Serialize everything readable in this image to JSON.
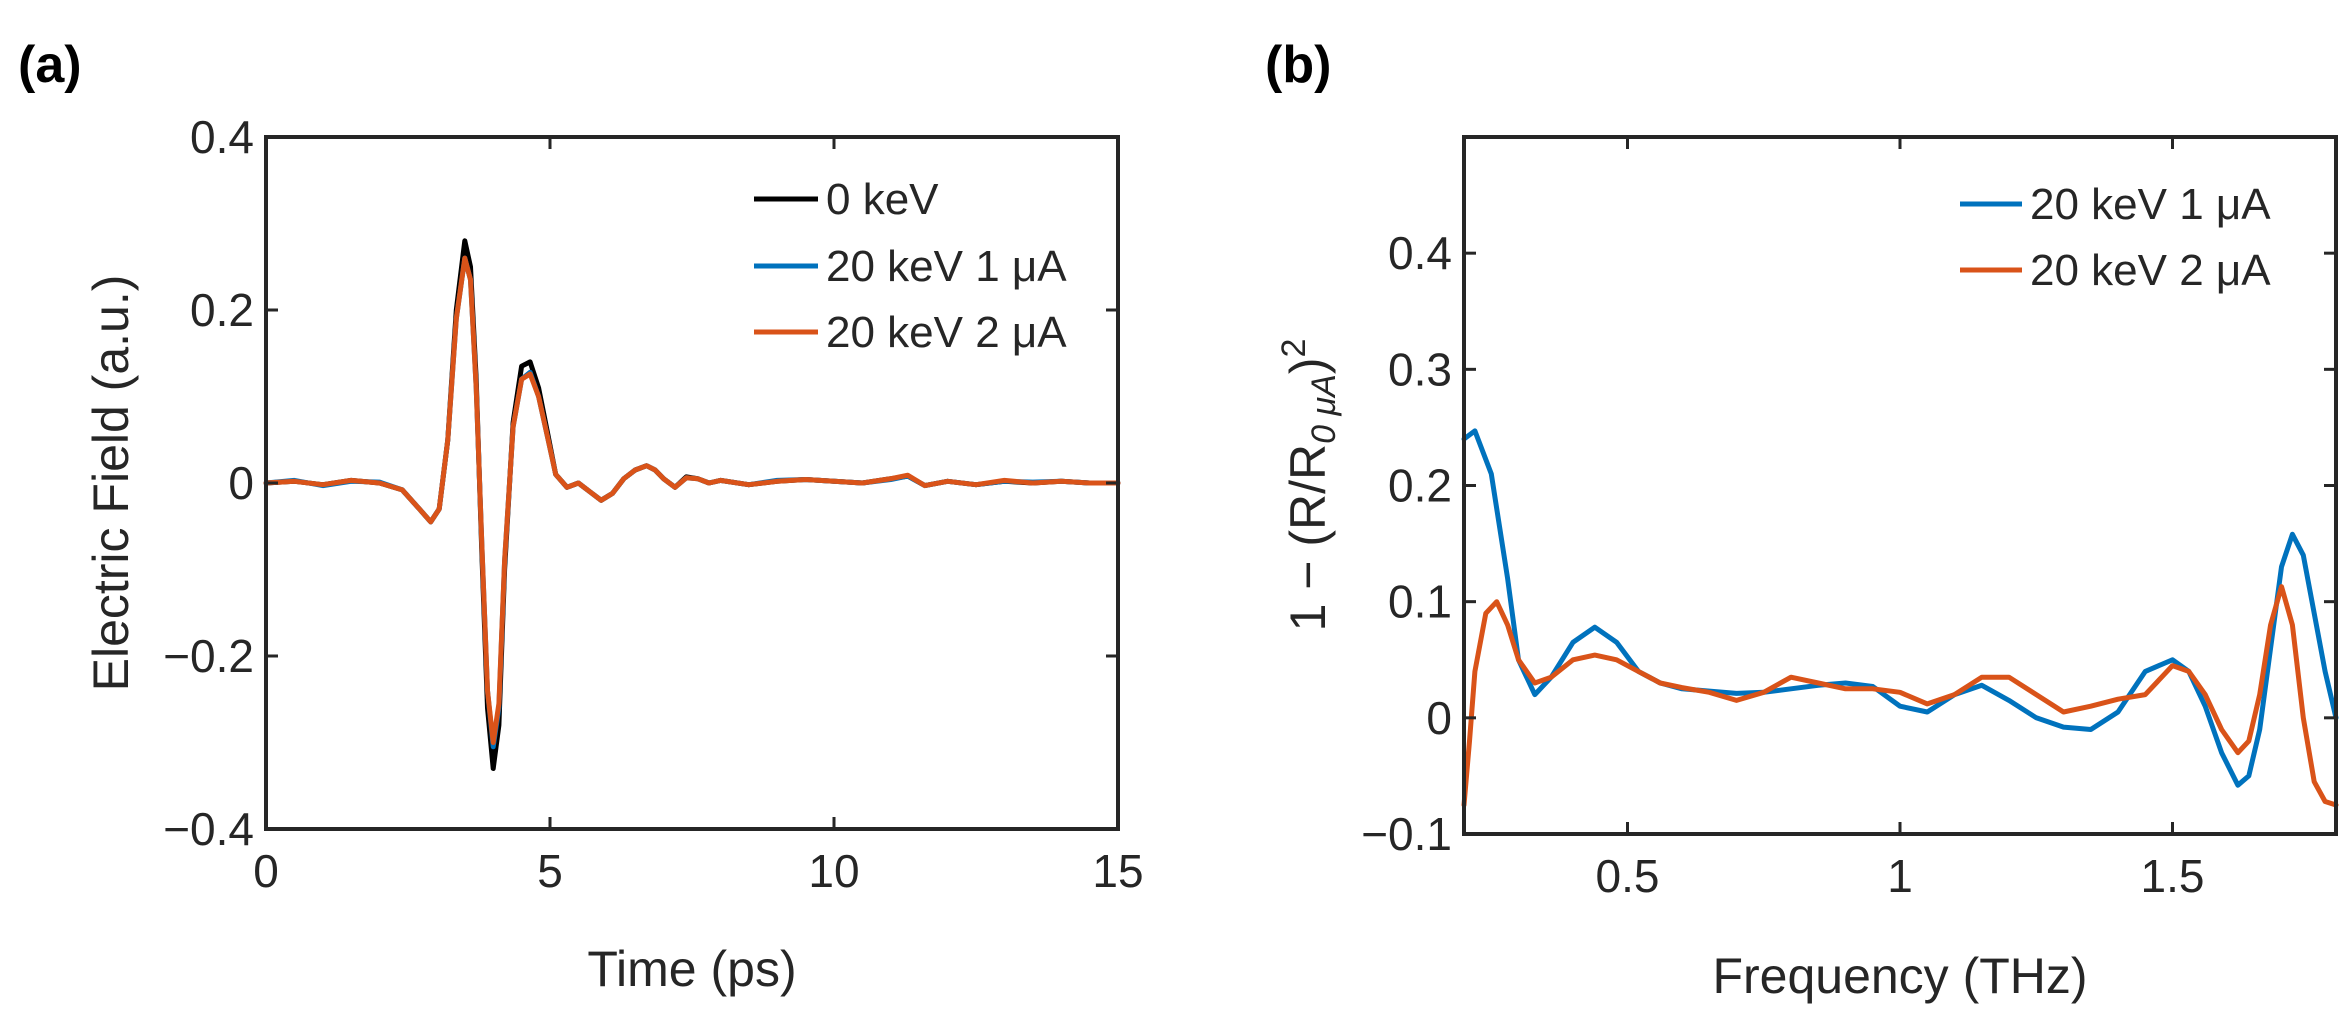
{
  "chart_data": [
    {
      "panel_label": "(a)",
      "type": "line",
      "xlabel": "Time (ps)",
      "ylabel": "Electric Field (a.u.)",
      "xlim": [
        0,
        15
      ],
      "ylim": [
        -0.4,
        0.4
      ],
      "xticks": [
        0,
        5,
        10,
        15
      ],
      "xtick_labels": [
        "0",
        "5",
        "10",
        "15"
      ],
      "yticks": [
        -0.4,
        -0.2,
        0,
        0.2,
        0.4
      ],
      "ytick_labels": [
        "−0.4",
        "−0.2",
        "0",
        "0.2",
        "0.4"
      ],
      "grid": false,
      "legend_position": "top-right",
      "series": [
        {
          "name": "0 keV",
          "color": "#000000",
          "x": [
            0,
            0.5,
            1.0,
            1.5,
            2.0,
            2.4,
            2.7,
            2.9,
            3.05,
            3.2,
            3.35,
            3.5,
            3.6,
            3.7,
            3.8,
            3.9,
            4.0,
            4.1,
            4.2,
            4.35,
            4.5,
            4.65,
            4.8,
            4.95,
            5.1,
            5.3,
            5.5,
            5.7,
            5.9,
            6.1,
            6.3,
            6.5,
            6.7,
            6.85,
            7.0,
            7.2,
            7.4,
            7.6,
            7.8,
            8.0,
            8.5,
            9.0,
            9.5,
            10.0,
            10.5,
            11.0,
            11.3,
            11.6,
            12.0,
            12.5,
            13.0,
            13.5,
            14.0,
            14.5,
            15.0
          ],
          "y": [
            0,
            0.002,
            -0.002,
            0.003,
            0,
            -0.008,
            -0.03,
            -0.045,
            -0.03,
            0.05,
            0.2,
            0.28,
            0.25,
            0.12,
            -0.08,
            -0.26,
            -0.33,
            -0.28,
            -0.1,
            0.07,
            0.135,
            0.14,
            0.11,
            0.06,
            0.01,
            -0.005,
            0,
            -0.01,
            -0.02,
            -0.012,
            0.005,
            0.015,
            0.02,
            0.015,
            0.005,
            -0.005,
            0.007,
            0.005,
            0,
            0.003,
            -0.002,
            0.002,
            0.004,
            0.002,
            0,
            0.005,
            0.008,
            -0.003,
            0.002,
            -0.002,
            0.002,
            0,
            0.002,
            0,
            0
          ]
        },
        {
          "name": "20 keV 1 μA",
          "color": "#0072BD",
          "x": [
            0,
            0.5,
            1.0,
            1.5,
            2.0,
            2.4,
            2.7,
            2.9,
            3.05,
            3.2,
            3.35,
            3.5,
            3.6,
            3.7,
            3.8,
            3.9,
            4.0,
            4.1,
            4.2,
            4.35,
            4.5,
            4.65,
            4.8,
            4.95,
            5.1,
            5.3,
            5.5,
            5.7,
            5.9,
            6.1,
            6.3,
            6.5,
            6.7,
            6.85,
            7.0,
            7.2,
            7.4,
            7.6,
            7.8,
            8.0,
            8.5,
            9.0,
            9.5,
            10.0,
            10.5,
            11.0,
            11.3,
            11.6,
            12.0,
            12.5,
            13.0,
            13.5,
            14.0,
            14.5,
            15.0
          ],
          "y": [
            0,
            0.003,
            -0.003,
            0.002,
            0.001,
            -0.008,
            -0.03,
            -0.045,
            -0.03,
            0.05,
            0.19,
            0.26,
            0.235,
            0.11,
            -0.07,
            -0.24,
            -0.305,
            -0.26,
            -0.09,
            0.065,
            0.12,
            0.128,
            0.1,
            0.055,
            0.01,
            -0.005,
            0,
            -0.01,
            -0.02,
            -0.012,
            0.005,
            0.015,
            0.02,
            0.015,
            0.005,
            -0.005,
            0.006,
            0.005,
            0,
            0.003,
            -0.002,
            0.003,
            0.004,
            0.002,
            0,
            0.004,
            0.008,
            -0.003,
            0.002,
            -0.002,
            0.002,
            0.001,
            0.002,
            0,
            0
          ]
        },
        {
          "name": "20 keV 2 μA",
          "color": "#D95319",
          "x": [
            0,
            0.5,
            1.0,
            1.5,
            2.0,
            2.4,
            2.7,
            2.9,
            3.05,
            3.2,
            3.35,
            3.5,
            3.6,
            3.7,
            3.8,
            3.9,
            4.0,
            4.1,
            4.2,
            4.35,
            4.5,
            4.65,
            4.8,
            4.95,
            5.1,
            5.3,
            5.5,
            5.7,
            5.9,
            6.1,
            6.3,
            6.5,
            6.7,
            6.85,
            7.0,
            7.2,
            7.4,
            7.6,
            7.8,
            8.0,
            8.5,
            9.0,
            9.5,
            10.0,
            10.5,
            11.0,
            11.3,
            11.6,
            12.0,
            12.5,
            13.0,
            13.5,
            14.0,
            14.5,
            15.0
          ],
          "y": [
            0,
            0.002,
            -0.002,
            0.003,
            0,
            -0.008,
            -0.03,
            -0.045,
            -0.03,
            0.05,
            0.19,
            0.26,
            0.235,
            0.11,
            -0.07,
            -0.24,
            -0.3,
            -0.255,
            -0.09,
            0.065,
            0.12,
            0.126,
            0.1,
            0.055,
            0.01,
            -0.005,
            0,
            -0.01,
            -0.02,
            -0.012,
            0.005,
            0.015,
            0.02,
            0.015,
            0.005,
            -0.005,
            0.006,
            0.005,
            0,
            0.003,
            -0.002,
            0.002,
            0.004,
            0.002,
            0,
            0.005,
            0.009,
            -0.003,
            0.002,
            -0.002,
            0.003,
            0,
            0.002,
            0,
            0
          ]
        }
      ]
    },
    {
      "panel_label": "(b)",
      "type": "line",
      "xlabel": "Frequency (THz)",
      "ylabel": "1 − (R/R",
      "ylabel_subscript": "0 μA",
      "ylabel_suffix": ")",
      "ylabel_superscript": "2",
      "xlim": [
        0.2,
        1.8
      ],
      "ylim": [
        -0.1,
        0.5
      ],
      "xticks": [
        0.5,
        1,
        1.5
      ],
      "xtick_labels": [
        "0.5",
        "1",
        "1.5"
      ],
      "yticks": [
        -0.1,
        0,
        0.1,
        0.2,
        0.3,
        0.4
      ],
      "ytick_labels": [
        "−0.1",
        "0",
        "0.1",
        "0.2",
        "0.3",
        "0.4"
      ],
      "grid": false,
      "legend_position": "top-right",
      "series": [
        {
          "name": "20 keV 1 μA",
          "color": "#0072BD",
          "x": [
            0.2,
            0.22,
            0.25,
            0.28,
            0.3,
            0.33,
            0.36,
            0.4,
            0.44,
            0.48,
            0.52,
            0.56,
            0.6,
            0.65,
            0.7,
            0.75,
            0.8,
            0.85,
            0.9,
            0.95,
            1.0,
            1.05,
            1.1,
            1.15,
            1.2,
            1.25,
            1.3,
            1.35,
            1.4,
            1.45,
            1.5,
            1.53,
            1.56,
            1.59,
            1.62,
            1.64,
            1.66,
            1.68,
            1.7,
            1.72,
            1.74,
            1.76,
            1.78,
            1.8
          ],
          "y": [
            0.24,
            0.247,
            0.21,
            0.12,
            0.05,
            0.02,
            0.035,
            0.065,
            0.078,
            0.065,
            0.04,
            0.03,
            0.025,
            0.023,
            0.021,
            0.022,
            0.025,
            0.028,
            0.03,
            0.027,
            0.01,
            0.005,
            0.02,
            0.028,
            0.015,
            0.0,
            -0.008,
            -0.01,
            0.005,
            0.04,
            0.05,
            0.04,
            0.01,
            -0.03,
            -0.058,
            -0.05,
            -0.01,
            0.06,
            0.13,
            0.158,
            0.14,
            0.09,
            0.04,
            0.0
          ]
        },
        {
          "name": "20 keV 2 μA",
          "color": "#D95319",
          "x": [
            0.2,
            0.21,
            0.22,
            0.24,
            0.26,
            0.28,
            0.3,
            0.33,
            0.36,
            0.4,
            0.44,
            0.48,
            0.52,
            0.56,
            0.6,
            0.65,
            0.7,
            0.75,
            0.8,
            0.85,
            0.9,
            0.95,
            1.0,
            1.05,
            1.1,
            1.15,
            1.2,
            1.25,
            1.3,
            1.35,
            1.4,
            1.45,
            1.5,
            1.53,
            1.56,
            1.59,
            1.62,
            1.64,
            1.66,
            1.68,
            1.7,
            1.72,
            1.74,
            1.76,
            1.78,
            1.8
          ],
          "y": [
            -0.075,
            -0.02,
            0.04,
            0.09,
            0.1,
            0.08,
            0.05,
            0.03,
            0.035,
            0.05,
            0.054,
            0.05,
            0.04,
            0.03,
            0.026,
            0.022,
            0.015,
            0.022,
            0.035,
            0.03,
            0.025,
            0.025,
            0.022,
            0.012,
            0.02,
            0.035,
            0.035,
            0.02,
            0.005,
            0.01,
            0.016,
            0.02,
            0.045,
            0.04,
            0.02,
            -0.01,
            -0.03,
            -0.02,
            0.02,
            0.08,
            0.113,
            0.08,
            0.0,
            -0.055,
            -0.072,
            -0.075
          ]
        }
      ]
    }
  ]
}
